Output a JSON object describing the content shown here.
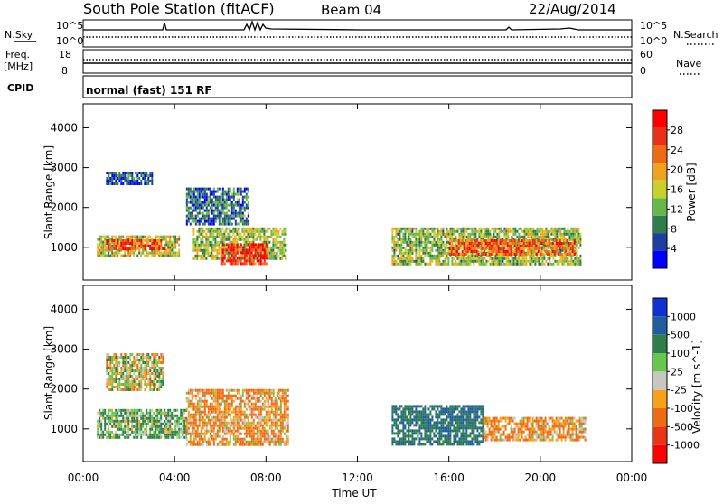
{
  "header": {
    "station": "South Pole Station (fitACF)",
    "beam": "Beam 04",
    "date": "22/Aug/2014"
  },
  "noise_panel": {
    "left_label": "N.Sky",
    "right_label": "N.Search",
    "ticks_left": [
      "10^5",
      "10^0"
    ],
    "ticks_right": [
      "10^5",
      "10^0"
    ]
  },
  "freq_panel": {
    "left_label_1": "Freq.",
    "left_label_2": "[MHz]",
    "right_label": "Nave",
    "ticks_left": [
      "18",
      "8"
    ],
    "ticks_right": [
      "60",
      "0"
    ]
  },
  "cpid_panel": {
    "label": "CPID",
    "mode_text": "normal (fast) 151 RF"
  },
  "axes": {
    "ylabel": "Slant Range [km]",
    "xlabel": "Time UT",
    "y_ticks": [
      "4000",
      "3000",
      "2000",
      "1000"
    ],
    "x_ticks": [
      "00:00",
      "04:00",
      "08:00",
      "12:00",
      "16:00",
      "20:00",
      "00:00"
    ]
  },
  "colors": {
    "power_scale": [
      "#0000ff",
      "#1f3fa0",
      "#2e7d4a",
      "#66b84d",
      "#c8d02b",
      "#f0a21f",
      "#ef6a14",
      "#e8301b",
      "#ff0000"
    ],
    "velocity_scale": [
      "#ff0000",
      "#e83514",
      "#ef6a14",
      "#f5a21a",
      "#c7c7c0",
      "#66c74d",
      "#2e7d4a",
      "#1f5fa0",
      "#1030d0"
    ]
  },
  "chart_data": [
    {
      "type": "heatmap",
      "title": "Power",
      "colorbar_label": "Power [dB]",
      "colorbar_ticks": [
        "28",
        "24",
        "20",
        "16",
        "12",
        "8",
        "4"
      ],
      "xlim": [
        0,
        24
      ],
      "ylim": [
        180,
        4600
      ],
      "regions": [
        {
          "t0": 0.6,
          "t1": 4.2,
          "r0": 800,
          "r1": 1300,
          "level": 16
        },
        {
          "t0": 1.0,
          "t1": 3.6,
          "r0": 950,
          "r1": 1200,
          "level": 26
        },
        {
          "t0": 4.8,
          "t1": 8.9,
          "r0": 700,
          "r1": 1500,
          "level": 14
        },
        {
          "t0": 6.0,
          "t1": 8.0,
          "r0": 600,
          "r1": 1100,
          "level": 28
        },
        {
          "t0": 13.5,
          "t1": 21.8,
          "r0": 600,
          "r1": 1500,
          "level": 14
        },
        {
          "t0": 16.0,
          "t1": 21.5,
          "r0": 800,
          "r1": 1200,
          "level": 24
        },
        {
          "t0": 1.0,
          "t1": 3.0,
          "r0": 2600,
          "r1": 2900,
          "level": 6
        },
        {
          "t0": 4.5,
          "t1": 7.2,
          "r0": 1600,
          "r1": 2500,
          "level": 8
        }
      ]
    },
    {
      "type": "heatmap",
      "title": "Velocity",
      "colorbar_label": "Velocity [m s^-1]",
      "colorbar_ticks": [
        "1000",
        "500",
        "100",
        "25",
        "-25",
        "-100",
        "-500",
        "-1000"
      ],
      "xlim": [
        0,
        24
      ],
      "ylim": [
        180,
        4600
      ],
      "regions": [
        {
          "t0": 0.6,
          "t1": 4.5,
          "r0": 800,
          "r1": 1500,
          "level": 100
        },
        {
          "t0": 4.5,
          "t1": 9.0,
          "r0": 600,
          "r1": 2000,
          "level": -100
        },
        {
          "t0": 1.0,
          "t1": 3.5,
          "r0": 2000,
          "r1": 2900,
          "level": 0
        },
        {
          "t0": 13.5,
          "t1": 17.5,
          "r0": 600,
          "r1": 1600,
          "level": 500
        },
        {
          "t0": 17.5,
          "t1": 22.0,
          "r0": 700,
          "r1": 1300,
          "level": -100
        }
      ]
    }
  ]
}
